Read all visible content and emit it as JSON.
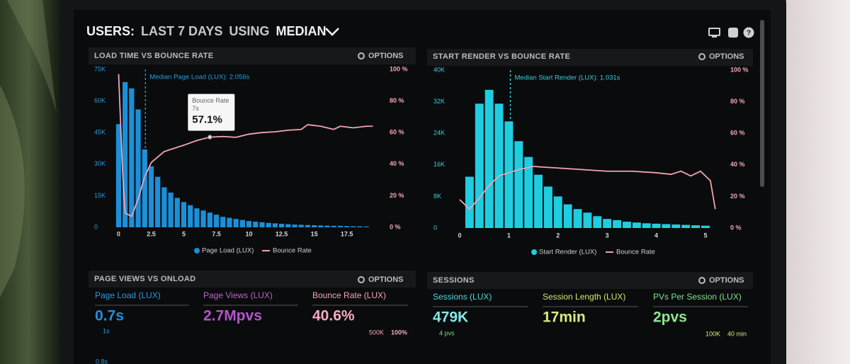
{
  "header": {
    "title_parts": [
      "USERS:",
      "LAST 7 DAYS",
      "USING",
      "MEDIAN"
    ]
  },
  "chart_data": [
    {
      "type": "histogram",
      "title": "LOAD TIME VS BOUNCE RATE",
      "options": "OPTIONS",
      "bins": [
        -0.25,
        0.25,
        0.75,
        1.25,
        1.75,
        2.25,
        2.75,
        3.25,
        3.75,
        4.25,
        4.75,
        5.25,
        5.75,
        6.25,
        6.75,
        7.25,
        7.75,
        8.25,
        8.75,
        9.25,
        9.75,
        10.25,
        10.75,
        11.25,
        11.75,
        12.25,
        12.75,
        13.25,
        13.75,
        14.25,
        14.75,
        15.25,
        15.75,
        16.25,
        16.75,
        17.25,
        17.75,
        18.25,
        18.75,
        19.25
      ],
      "series": [
        {
          "name": "Page Load (LUX)",
          "color": "#1b8fd8",
          "values": [
            49000,
            69000,
            66000,
            56000,
            37000,
            29000,
            24000,
            19000,
            16500,
            14000,
            12000,
            10500,
            9000,
            8000,
            7000,
            6000,
            5000,
            4500,
            4000,
            3500,
            3000,
            2700,
            2400,
            2100,
            1900,
            1700,
            1500,
            1300,
            1200,
            1100,
            1000,
            900,
            800,
            700,
            700,
            600,
            500,
            500,
            400
          ]
        },
        {
          "name": "Bounce Rate",
          "color": "#f3a3b5",
          "axis": "y2",
          "x": [
            0,
            0.3,
            0.5,
            1,
            1.5,
            2,
            2.5,
            3.5,
            5,
            6,
            7,
            8,
            9,
            10,
            11,
            12,
            13,
            14,
            14.5,
            15.5,
            16.5,
            17,
            18,
            19,
            19.5
          ],
          "values": [
            97,
            36,
            9,
            7,
            18,
            32,
            41,
            48,
            52,
            55,
            57.1,
            57.5,
            57,
            59,
            60,
            60.5,
            61.5,
            62,
            65,
            64,
            62,
            64,
            63,
            64,
            64
          ]
        }
      ],
      "xlim": [
        -0.35,
        20.4
      ],
      "xticks": [
        0,
        2.5,
        5,
        7.5,
        10,
        12.5,
        15,
        17.5
      ],
      "ylim": [
        0,
        75000
      ],
      "yticks": [
        0,
        {
          "value": 15000,
          "label": "15K"
        },
        {
          "value": 30000,
          "label": "30K"
        },
        {
          "value": 45000,
          "label": "45K"
        },
        {
          "value": 60000,
          "label": "60K"
        },
        {
          "value": 75000,
          "label": "75K"
        }
      ],
      "y2lim": [
        0,
        100
      ],
      "y2ticks": [
        {
          "value": 0,
          "label": "0 %"
        },
        {
          "value": 20,
          "label": "20 %"
        },
        {
          "value": 40,
          "label": "40 %"
        },
        {
          "value": 60,
          "label": "60 %"
        },
        {
          "value": 80,
          "label": "80 %"
        },
        {
          "value": 100,
          "label": "100 %"
        }
      ],
      "median": {
        "value": 2.056,
        "label": "Median Page Load (LUX): 2.056s"
      },
      "tooltip": {
        "title": "Bounce Rate",
        "x_label": "7s",
        "value_label": "57.1%",
        "x": 7,
        "value": 57.1
      }
    },
    {
      "type": "histogram",
      "title": "START RENDER VS BOUNCE RATE",
      "options": "OPTIONS",
      "bins": [
        0.1,
        0.3,
        0.5,
        0.7,
        0.9,
        1.1,
        1.3,
        1.5,
        1.7,
        1.9,
        2.1,
        2.3,
        2.5,
        2.7,
        2.9,
        3.1,
        3.3,
        3.5,
        3.7,
        3.9,
        4.1,
        4.3,
        4.5,
        4.7,
        4.9,
        5.1
      ],
      "series": [
        {
          "name": "Start Render (LUX)",
          "color": "#1fcde0",
          "values": [
            13000,
            31500,
            35000,
            31500,
            27000,
            22000,
            18000,
            13500,
            10500,
            8000,
            6000,
            4800,
            3900,
            3000,
            2300,
            2000,
            1600,
            1400,
            1200,
            1100,
            1000,
            900,
            800,
            700,
            600
          ]
        },
        {
          "name": "Bounce Rate",
          "color": "#f3a3b5",
          "axis": "y2",
          "x": [
            0,
            0.2,
            0.4,
            0.6,
            0.8,
            1,
            1.2,
            1.5,
            2,
            2.5,
            3,
            3.5,
            4,
            4.3,
            4.5,
            4.7,
            4.9,
            5.1,
            5.2
          ],
          "values": [
            18,
            12,
            19,
            27,
            33,
            35,
            37,
            39,
            38,
            37,
            36,
            36,
            35,
            34,
            36,
            33,
            36,
            30,
            12
          ]
        }
      ],
      "xlim": [
        -0.05,
        5.25
      ],
      "xticks": [
        0,
        1,
        2,
        3,
        4,
        5
      ],
      "ylim": [
        0,
        40000
      ],
      "yticks": [
        0,
        {
          "value": 8000,
          "label": "8K"
        },
        {
          "value": 16000,
          "label": "16K"
        },
        {
          "value": 24000,
          "label": "24K"
        },
        {
          "value": 32000,
          "label": "32K"
        },
        {
          "value": 40000,
          "label": "40K"
        }
      ],
      "y2lim": [
        0,
        100
      ],
      "y2ticks": [
        {
          "value": 0,
          "label": "0 %"
        },
        {
          "value": 20,
          "label": "20 %"
        },
        {
          "value": 40,
          "label": "40 %"
        },
        {
          "value": 60,
          "label": "60 %"
        },
        {
          "value": 80,
          "label": "80 %"
        },
        {
          "value": 100,
          "label": "100 %"
        }
      ],
      "median": {
        "value": 1.031,
        "label": "Median Start Render (LUX): 1.031s"
      }
    }
  ],
  "panels": [
    {
      "title": "PAGE VIEWS VS ONLOAD",
      "options": "OPTIONS",
      "metrics": [
        {
          "label": "Page Load (LUX)",
          "value": "0.7s"
        },
        {
          "label": "Page Views (LUX)",
          "value": "2.7Mpvs"
        },
        {
          "label": "Bounce Rate (LUX)",
          "value": "40.6%"
        }
      ],
      "axis_labels": [
        "1s",
        "0.8s",
        "500K",
        "100%"
      ]
    },
    {
      "title": "SESSIONS",
      "options": "OPTIONS",
      "metrics": [
        {
          "label": "Sessions (LUX)",
          "value": "479K"
        },
        {
          "label": "Session Length (LUX)",
          "value": "17min"
        },
        {
          "label": "PVs Per Session (LUX)",
          "value": "2pvs"
        }
      ],
      "axis_labels": [
        "4 pvs",
        "100K",
        "40 min"
      ]
    }
  ]
}
